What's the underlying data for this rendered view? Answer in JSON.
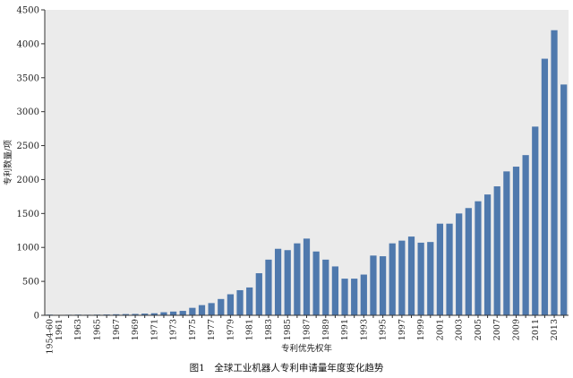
{
  "chart_data": {
    "type": "bar",
    "ylabel": "专利数量/项",
    "xlabel": "专利优先权年",
    "ylim": [
      0,
      4500
    ],
    "yticks": [
      0,
      500,
      1000,
      1500,
      2000,
      2500,
      3000,
      3500,
      4000,
      4500
    ],
    "grid": false,
    "bar_color": "#4f79ad",
    "plot_background": "#ebebeb",
    "categories": [
      "1954-60",
      "1961",
      "1962",
      "1963",
      "1964",
      "1965",
      "1966",
      "1967",
      "1968",
      "1969",
      "1970",
      "1971",
      "1972",
      "1973",
      "1974",
      "1975",
      "1976",
      "1977",
      "1978",
      "1979",
      "1980",
      "1981",
      "1982",
      "1983",
      "1984",
      "1985",
      "1986",
      "1987",
      "1988",
      "1989",
      "1990",
      "1991",
      "1992",
      "1993",
      "1994",
      "1995",
      "1996",
      "1997",
      "1998",
      "1999",
      "2000",
      "2001",
      "2002",
      "2003",
      "2004",
      "2005",
      "2006",
      "2007",
      "2008",
      "2009",
      "2010",
      "2011",
      "2012",
      "2013",
      "2014"
    ],
    "tick_labels": [
      "1954-60",
      "1961",
      "",
      "1963",
      "",
      "1965",
      "",
      "1967",
      "",
      "1969",
      "",
      "1971",
      "",
      "1973",
      "",
      "1975",
      "",
      "1977",
      "",
      "1979",
      "",
      "1981",
      "",
      "1983",
      "",
      "1985",
      "",
      "1987",
      "",
      "1989",
      "",
      "1991",
      "",
      "1993",
      "",
      "1995",
      "",
      "1997",
      "",
      "1999",
      "",
      "2001",
      "",
      "2003",
      "",
      "2005",
      "",
      "2007",
      "",
      "2009",
      "",
      "2011",
      "",
      "2013",
      ""
    ],
    "values": [
      10,
      5,
      8,
      10,
      8,
      10,
      12,
      15,
      18,
      20,
      25,
      30,
      45,
      55,
      65,
      110,
      150,
      180,
      240,
      310,
      370,
      410,
      620,
      820,
      980,
      960,
      1060,
      1130,
      940,
      820,
      720,
      540,
      540,
      600,
      880,
      870,
      1060,
      1100,
      1160,
      1070,
      1080,
      1350,
      1350,
      1500,
      1580,
      1680,
      1780,
      1900,
      2120,
      2190,
      2360,
      2780,
      3780,
      4200,
      3400
    ]
  },
  "caption": "图1　全球工业机器人专利申请量年度变化趋势"
}
